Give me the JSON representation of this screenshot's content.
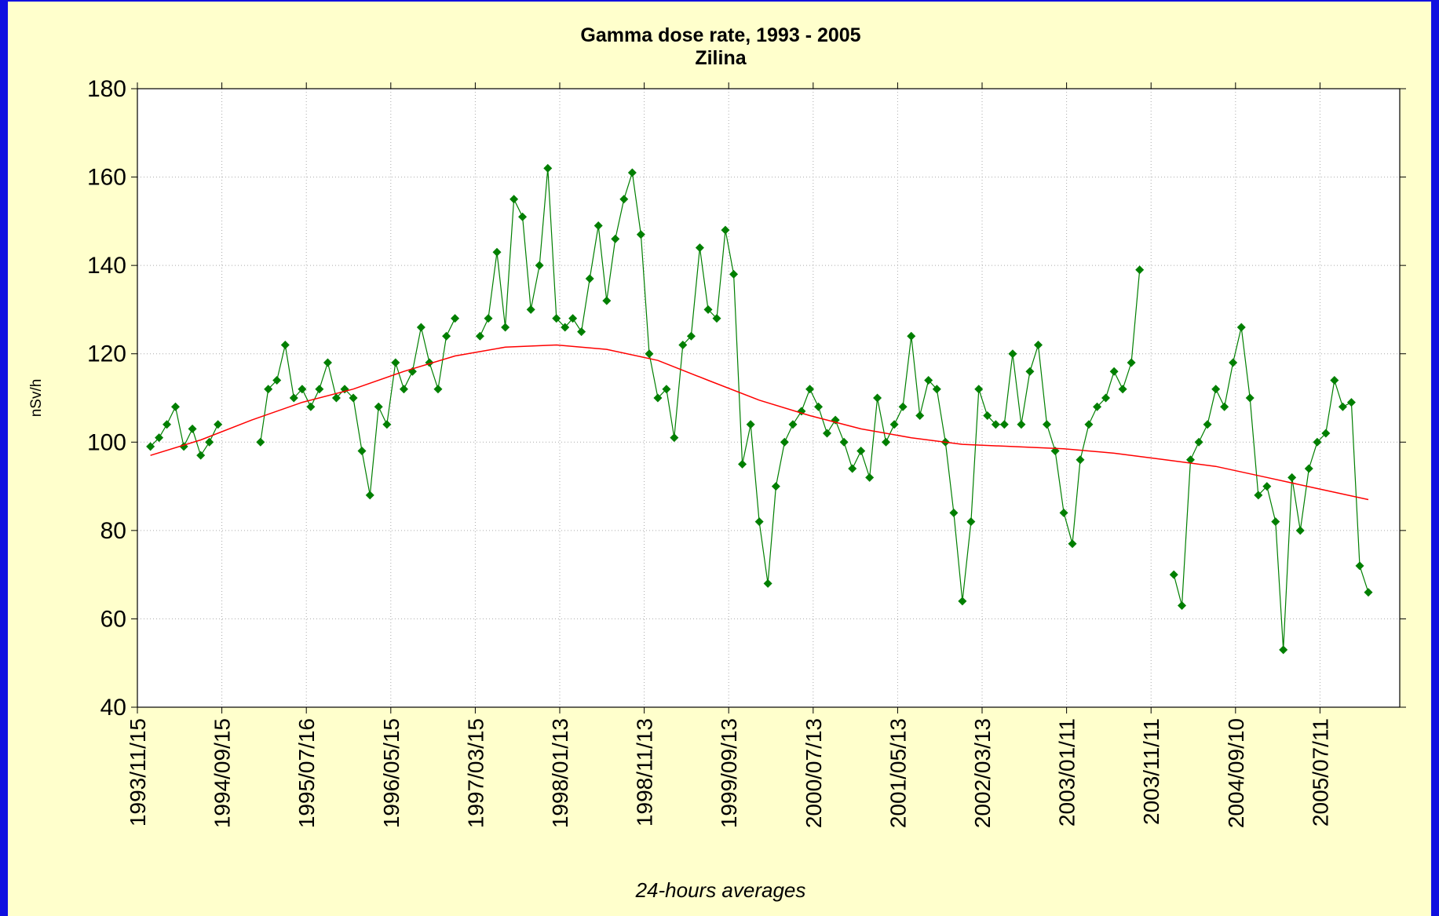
{
  "chart_data": {
    "type": "line",
    "title": "Gamma dose rate, 1993 - 2005",
    "subtitle": "Zilina",
    "y_label": "nSv/h",
    "x_label": "24-hours averages",
    "xlim": [
      "1993/11/15",
      "2006/04/24"
    ],
    "xticks": [
      "1993/11/15",
      "1994/09/15",
      "1995/07/16",
      "1996/05/15",
      "1997/03/15",
      "1998/01/13",
      "1998/11/13",
      "1999/09/13",
      "2000/07/13",
      "2001/05/13",
      "2002/03/13",
      "2003/01/11",
      "2003/11/11",
      "2004/09/10",
      "2005/07/11"
    ],
    "ylim": [
      40,
      180
    ],
    "yticks": [
      40,
      60,
      80,
      100,
      120,
      140,
      160,
      180
    ],
    "grid": true,
    "series": [
      {
        "color": "#007f00",
        "markers": true,
        "x": [
          "1994/01/01",
          "1994/02/01",
          "1994/03/01",
          "1994/04/01",
          "1994/05/01",
          "1994/06/01",
          "1994/07/01",
          "1994/08/01",
          "1994/09/01",
          "1994/10/01",
          "1994/11/01",
          "1994/12/01",
          "1995/01/01",
          "1995/02/01",
          "1995/03/01",
          "1995/04/01",
          "1995/05/01",
          "1995/06/01",
          "1995/07/01",
          "1995/08/01",
          "1995/09/01",
          "1995/10/01",
          "1995/11/01",
          "1995/12/01",
          "1996/01/01",
          "1996/02/01",
          "1996/03/01",
          "1996/04/01",
          "1996/05/01",
          "1996/06/01",
          "1996/07/01",
          "1996/08/01",
          "1996/09/01",
          "1996/10/01",
          "1996/11/01",
          "1996/12/01",
          "1997/01/01",
          "1997/02/01",
          "1997/03/01",
          "1997/04/01",
          "1997/05/01",
          "1997/06/01",
          "1997/07/01",
          "1997/08/01",
          "1997/09/01",
          "1997/10/01",
          "1997/11/01",
          "1997/12/01",
          "1998/01/01",
          "1998/02/01",
          "1998/03/01",
          "1998/04/01",
          "1998/05/01",
          "1998/06/01",
          "1998/07/01",
          "1998/08/01",
          "1998/09/01",
          "1998/10/01",
          "1998/11/01",
          "1998/12/01",
          "1999/01/01",
          "1999/02/01",
          "1999/03/01",
          "1999/04/01",
          "1999/05/01",
          "1999/06/01",
          "1999/07/01",
          "1999/08/01",
          "1999/09/01",
          "1999/10/01",
          "1999/11/01",
          "1999/12/01",
          "2000/01/01",
          "2000/02/01",
          "2000/03/01",
          "2000/04/01",
          "2000/05/01",
          "2000/06/01",
          "2000/07/01",
          "2000/08/01",
          "2000/09/01",
          "2000/10/01",
          "2000/11/01",
          "2000/12/01",
          "2001/01/01",
          "2001/02/01",
          "2001/03/01",
          "2001/04/01",
          "2001/05/01",
          "2001/06/01",
          "2001/07/01",
          "2001/08/01",
          "2001/09/01",
          "2001/10/01",
          "2001/11/01",
          "2001/12/01",
          "2002/01/01",
          "2002/02/01",
          "2002/03/01",
          "2002/04/01",
          "2002/05/01",
          "2002/06/01",
          "2002/07/01",
          "2002/08/01",
          "2002/09/01",
          "2002/10/01",
          "2002/11/01",
          "2002/12/01",
          "2003/01/01",
          "2003/02/01",
          "2003/03/01",
          "2003/04/01",
          "2003/05/01",
          "2003/06/01",
          "2003/07/01",
          "2003/08/01",
          "2003/09/01",
          "2003/10/01",
          "2003/11/01",
          "2003/12/01",
          "2004/01/01",
          "2004/02/01",
          "2004/03/01",
          "2004/04/01",
          "2004/05/01",
          "2004/06/01",
          "2004/07/01",
          "2004/08/01",
          "2004/09/01",
          "2004/10/01",
          "2004/11/01",
          "2004/12/01",
          "2005/01/01",
          "2005/02/01",
          "2005/03/01",
          "2005/04/01",
          "2005/05/01",
          "2005/06/01",
          "2005/07/01",
          "2005/08/01",
          "2005/09/01",
          "2005/10/01",
          "2005/11/01",
          "2005/12/01",
          "2006/01/01"
        ],
        "values": [
          99,
          101,
          104,
          108,
          99,
          103,
          97,
          100,
          104,
          null,
          null,
          null,
          null,
          100,
          112,
          114,
          122,
          110,
          112,
          108,
          112,
          118,
          110,
          112,
          110,
          98,
          88,
          108,
          104,
          118,
          112,
          116,
          126,
          118,
          112,
          124,
          128,
          null,
          null,
          124,
          128,
          143,
          126,
          155,
          151,
          130,
          140,
          162,
          128,
          126,
          128,
          125,
          137,
          149,
          132,
          146,
          155,
          161,
          147,
          120,
          110,
          112,
          101,
          122,
          124,
          144,
          130,
          128,
          148,
          138,
          95,
          104,
          82,
          68,
          90,
          100,
          104,
          107,
          112,
          108,
          102,
          105,
          100,
          94,
          98,
          92,
          110,
          100,
          104,
          108,
          124,
          106,
          114,
          112,
          100,
          84,
          64,
          82,
          112,
          106,
          104,
          104,
          120,
          104,
          116,
          122,
          104,
          98,
          84,
          77,
          96,
          104,
          108,
          110,
          116,
          112,
          118,
          139,
          null,
          null,
          null,
          70,
          63,
          96,
          100,
          104,
          112,
          108,
          118,
          126,
          110,
          88,
          90,
          82,
          53,
          92,
          80,
          94,
          100,
          102,
          114,
          108,
          109,
          72,
          66
        ]
      },
      {
        "color": "#ff0000",
        "markers": false,
        "x": [
          "1994/01/01",
          "1994/07/01",
          "1995/01/01",
          "1995/07/01",
          "1996/01/01",
          "1996/07/01",
          "1997/01/01",
          "1997/07/01",
          "1998/01/01",
          "1998/07/01",
          "1999/01/01",
          "1999/07/01",
          "2000/01/01",
          "2000/07/01",
          "2001/01/01",
          "2001/07/01",
          "2002/01/01",
          "2002/07/01",
          "2003/01/01",
          "2003/07/01",
          "2004/01/01",
          "2004/07/01",
          "2005/01/01",
          "2005/07/01",
          "2006/01/01"
        ],
        "values": [
          97,
          100.5,
          105,
          109,
          112,
          116,
          119.5,
          121.5,
          122,
          121,
          118.5,
          114,
          109.5,
          106,
          103,
          101,
          99.5,
          99,
          98.5,
          97.5,
          96,
          94.5,
          92,
          89.5,
          87
        ]
      }
    ]
  }
}
